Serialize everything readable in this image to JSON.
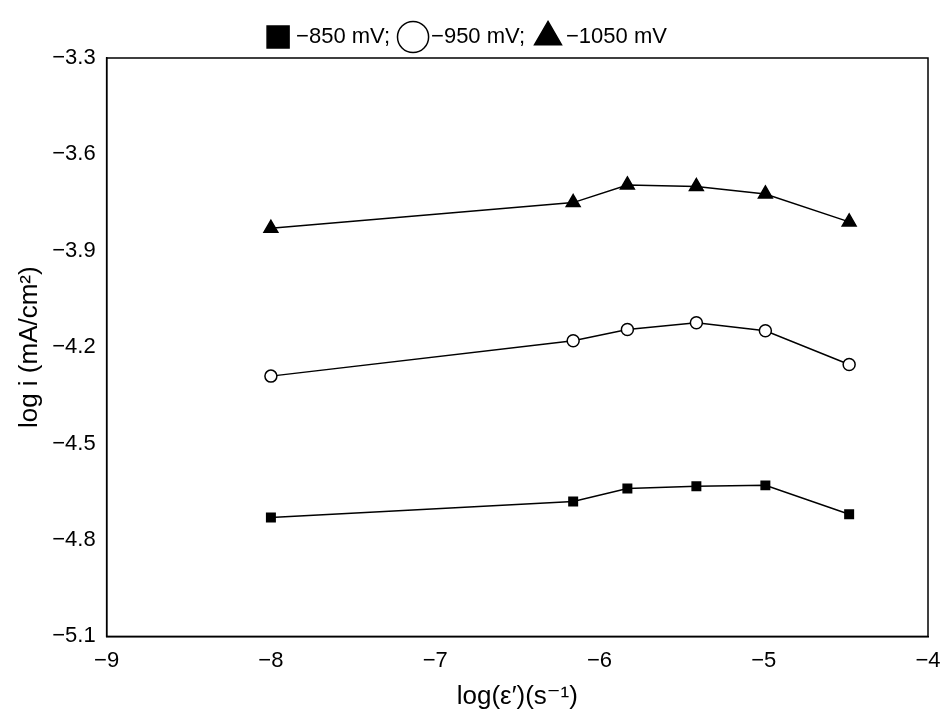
{
  "chart_data": {
    "type": "line",
    "x_label": "log(ε′)(s⁻¹)",
    "y_label": "log i (mA/cm²)",
    "x": [
      -8,
      -6.16,
      -5.83,
      -5.41,
      -4.99,
      -4.48
    ],
    "series": [
      {
        "name": "−850 mV;",
        "color": "#000000",
        "marker": "square",
        "values": [
          -4.73,
          -4.68,
          -4.64,
          -4.633,
          -4.63,
          -4.72
        ]
      },
      {
        "name": "−950 mV;",
        "color": "#000000",
        "marker": "circle_open",
        "values": [
          -4.29,
          -4.18,
          -4.145,
          -4.124,
          -4.149,
          -4.254
        ]
      },
      {
        "name": "−1050 mV",
        "color": "#000000",
        "marker": "triangle",
        "values": [
          -3.83,
          -3.75,
          -3.695,
          -3.7,
          -3.723,
          -3.81
        ]
      }
    ],
    "xlim": [
      -9,
      -4
    ],
    "xticks": [
      {
        "value": -9,
        "label": "−9"
      },
      {
        "value": -8,
        "label": "−8"
      },
      {
        "value": -7,
        "label": "−7"
      },
      {
        "value": -6,
        "label": "−6"
      },
      {
        "value": -5,
        "label": "−5"
      },
      {
        "value": -4,
        "label": "−4"
      }
    ],
    "ylim": [
      -5.1,
      -3.3
    ],
    "yticks": [
      {
        "value": -5.1,
        "label": "−5.1"
      },
      {
        "value": -4.8,
        "label": "−4.8"
      },
      {
        "value": -4.5,
        "label": "−4.5"
      },
      {
        "value": -4.2,
        "label": "−4.2"
      },
      {
        "value": -3.9,
        "label": "−3.9"
      },
      {
        "value": -3.6,
        "label": "−3.6"
      },
      {
        "value": -3.3,
        "label": "−3.3"
      }
    ],
    "grid": false,
    "legend": "top"
  }
}
